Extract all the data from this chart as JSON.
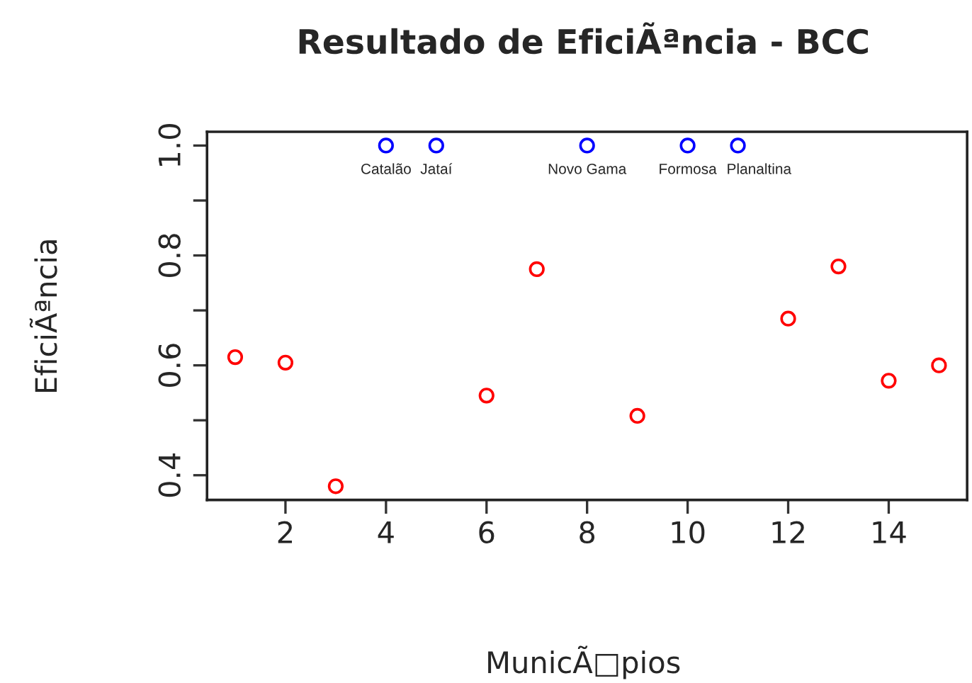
{
  "chart_data": {
    "type": "scatter",
    "title": "Resultado de EficiÃªncia - BCC",
    "xlabel": "MunicÃ□pios",
    "ylabel": "EficiÃªncia",
    "series": [
      {
        "color": "#ff0000",
        "x": [
          1,
          2,
          3,
          6,
          7,
          9,
          12,
          13,
          14,
          15
        ],
        "values": [
          0.615,
          0.605,
          0.38,
          0.545,
          0.775,
          0.508,
          0.685,
          0.78,
          0.572,
          0.6
        ]
      },
      {
        "color": "#0000ff",
        "x": [
          4,
          5,
          8,
          10,
          11
        ],
        "values": [
          1.0,
          1.0,
          1.0,
          1.0,
          1.0
        ]
      }
    ],
    "annotations": [
      {
        "text": "Catalão",
        "x": 4,
        "y": 1.0
      },
      {
        "text": "Jataí",
        "x": 5,
        "y": 1.0
      },
      {
        "text": "Novo Gama",
        "x": 8,
        "y": 1.0
      },
      {
        "text": "Formosa",
        "x": 10,
        "y": 1.0
      },
      {
        "text": "Planaltina",
        "x": 11,
        "y": 1.0
      }
    ],
    "xlim": [
      0.44,
      15.56
    ],
    "ylim": [
      0.355,
      1.025
    ],
    "xticks": [
      2,
      4,
      6,
      8,
      10,
      12,
      14
    ],
    "yticks": [
      0.4,
      {
        "value": 0.5,
        "label": null
      },
      0.6,
      {
        "value": 0.7,
        "label": null
      },
      0.8,
      {
        "value": 0.9,
        "label": null
      },
      {
        "value": 1.0,
        "label": "1.0"
      }
    ],
    "marker": "circle",
    "grid": false,
    "legend": false
  }
}
